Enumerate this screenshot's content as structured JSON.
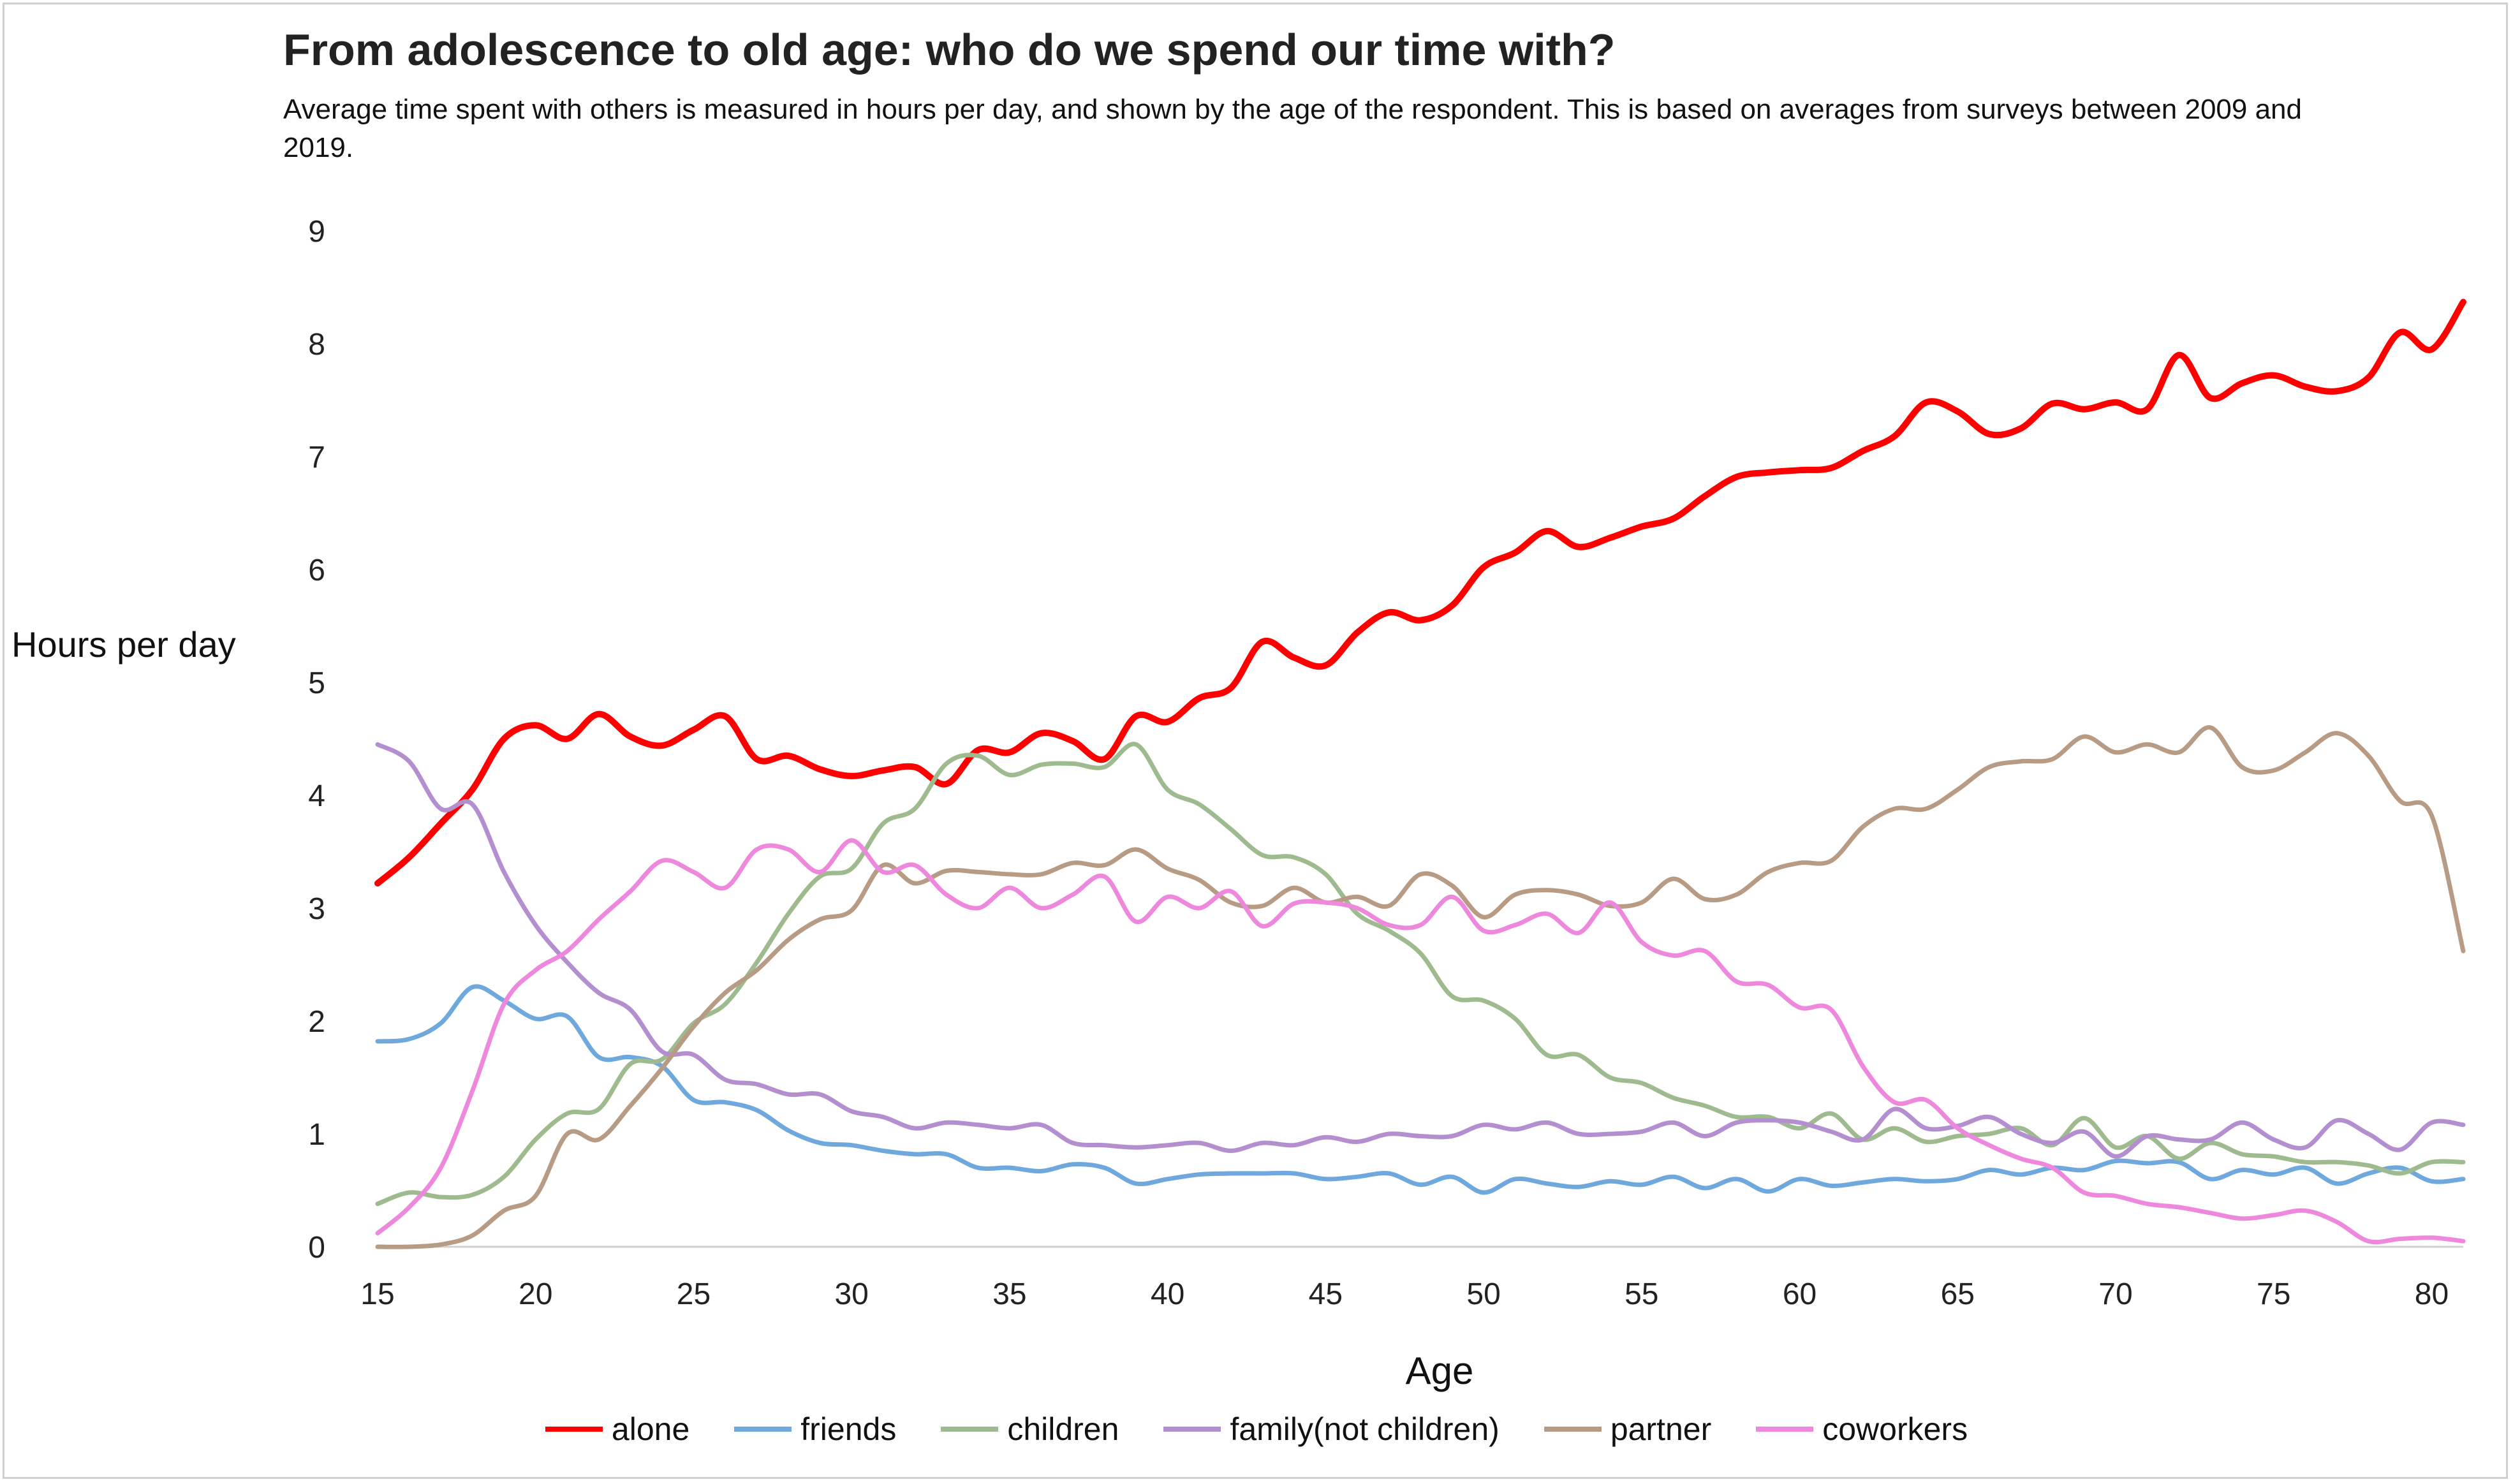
{
  "header": {
    "title": "From adolescence to old age: who do we spend our time with?",
    "subtitle": "Average time spent with others is measured in hours per day, and shown by the age of the respondent. This is based on averages from surveys between 2009 and 2019."
  },
  "chart_data": {
    "type": "line",
    "title": "From adolescence to old age: who do we spend our time with?",
    "subtitle": "Average time spent with others is measured in hours per day, and shown by the age of the respondent. This is based on averages from surveys between 2009 and 2019.",
    "xlabel": "Age",
    "ylabel": "Hours per day",
    "xlim": [
      15,
      81
    ],
    "ylim": [
      0,
      9
    ],
    "x_ticks": [
      15,
      20,
      25,
      30,
      35,
      40,
      45,
      50,
      55,
      60,
      65,
      70,
      75,
      80
    ],
    "y_ticks": [
      0,
      1,
      2,
      3,
      4,
      5,
      6,
      7,
      8,
      9
    ],
    "grid": false,
    "legend_position": "bottom",
    "x": [
      15,
      16,
      17,
      18,
      19,
      20,
      21,
      22,
      23,
      24,
      25,
      26,
      27,
      28,
      29,
      30,
      31,
      32,
      33,
      34,
      35,
      36,
      37,
      38,
      39,
      40,
      41,
      42,
      43,
      44,
      45,
      46,
      47,
      48,
      49,
      50,
      51,
      52,
      53,
      54,
      55,
      56,
      57,
      58,
      59,
      60,
      61,
      62,
      63,
      64,
      65,
      66,
      67,
      68,
      69,
      70,
      71,
      72,
      73,
      74,
      75,
      76,
      77,
      78,
      79,
      80,
      81
    ],
    "series": [
      {
        "name": "alone",
        "color": "#ff0000",
        "values": [
          3.22,
          3.45,
          3.75,
          4.05,
          4.5,
          4.62,
          4.5,
          4.72,
          4.52,
          4.44,
          4.58,
          4.7,
          4.32,
          4.35,
          4.23,
          4.17,
          4.22,
          4.25,
          4.1,
          4.4,
          4.38,
          4.55,
          4.48,
          4.32,
          4.7,
          4.65,
          4.86,
          4.95,
          5.36,
          5.22,
          5.15,
          5.44,
          5.62,
          5.55,
          5.68,
          6.02,
          6.15,
          6.34,
          6.2,
          6.28,
          6.38,
          6.45,
          6.65,
          6.82,
          6.86,
          6.88,
          6.9,
          7.05,
          7.18,
          7.48,
          7.4,
          7.2,
          7.25,
          7.47,
          7.42,
          7.48,
          7.42,
          7.9,
          7.52,
          7.65,
          7.72,
          7.62,
          7.58,
          7.7,
          8.1,
          7.95,
          8.37
        ]
      },
      {
        "name": "friends",
        "color": "#6fa8dc",
        "values": [
          1.82,
          1.84,
          1.98,
          2.3,
          2.18,
          2.02,
          2.04,
          1.68,
          1.68,
          1.6,
          1.3,
          1.28,
          1.21,
          1.03,
          0.92,
          0.9,
          0.85,
          0.82,
          0.82,
          0.7,
          0.7,
          0.67,
          0.73,
          0.7,
          0.56,
          0.6,
          0.64,
          0.65,
          0.65,
          0.65,
          0.6,
          0.62,
          0.65,
          0.55,
          0.62,
          0.48,
          0.6,
          0.56,
          0.53,
          0.58,
          0.55,
          0.62,
          0.52,
          0.6,
          0.49,
          0.6,
          0.54,
          0.57,
          0.6,
          0.58,
          0.6,
          0.68,
          0.64,
          0.7,
          0.68,
          0.76,
          0.74,
          0.75,
          0.6,
          0.68,
          0.64,
          0.7,
          0.56,
          0.65,
          0.7,
          0.58,
          0.6
        ]
      },
      {
        "name": "children",
        "color": "#9dbb8f",
        "values": [
          0.38,
          0.48,
          0.44,
          0.46,
          0.62,
          0.95,
          1.18,
          1.22,
          1.62,
          1.66,
          1.98,
          2.15,
          2.52,
          2.95,
          3.28,
          3.35,
          3.75,
          3.88,
          4.28,
          4.35,
          4.18,
          4.27,
          4.28,
          4.25,
          4.45,
          4.05,
          3.92,
          3.7,
          3.47,
          3.45,
          3.3,
          2.95,
          2.8,
          2.6,
          2.22,
          2.18,
          2.02,
          1.7,
          1.7,
          1.5,
          1.45,
          1.32,
          1.25,
          1.15,
          1.15,
          1.05,
          1.18,
          0.95,
          1.05,
          0.93,
          0.98,
          1.0,
          1.05,
          0.9,
          1.14,
          0.88,
          0.98,
          0.78,
          0.92,
          0.82,
          0.8,
          0.75,
          0.75,
          0.72,
          0.65,
          0.75,
          0.75
        ]
      },
      {
        "name": "family(not children)",
        "color": "#b48fd0",
        "values": [
          4.45,
          4.3,
          3.88,
          3.92,
          3.32,
          2.85,
          2.52,
          2.25,
          2.1,
          1.73,
          1.7,
          1.48,
          1.44,
          1.35,
          1.35,
          1.2,
          1.15,
          1.05,
          1.1,
          1.08,
          1.05,
          1.08,
          0.92,
          0.9,
          0.88,
          0.9,
          0.92,
          0.85,
          0.92,
          0.9,
          0.97,
          0.93,
          1.0,
          0.98,
          0.98,
          1.08,
          1.04,
          1.1,
          1.0,
          1.0,
          1.02,
          1.1,
          0.98,
          1.1,
          1.12,
          1.1,
          1.02,
          0.95,
          1.22,
          1.05,
          1.07,
          1.15,
          1.0,
          0.92,
          1.02,
          0.8,
          0.98,
          0.95,
          0.95,
          1.1,
          0.95,
          0.88,
          1.12,
          1.0,
          0.86,
          1.1,
          1.08
        ]
      },
      {
        "name": "partner",
        "color": "#b89b84",
        "values": [
          0.0,
          0.0,
          0.02,
          0.1,
          0.32,
          0.45,
          1.0,
          0.95,
          1.25,
          1.58,
          1.95,
          2.25,
          2.45,
          2.72,
          2.9,
          2.98,
          3.38,
          3.22,
          3.33,
          3.32,
          3.3,
          3.3,
          3.4,
          3.38,
          3.52,
          3.35,
          3.25,
          3.05,
          3.02,
          3.18,
          3.05,
          3.1,
          3.02,
          3.3,
          3.2,
          2.92,
          3.12,
          3.16,
          3.12,
          3.02,
          3.05,
          3.26,
          3.08,
          3.12,
          3.32,
          3.4,
          3.42,
          3.72,
          3.88,
          3.88,
          4.05,
          4.25,
          4.3,
          4.32,
          4.52,
          4.38,
          4.45,
          4.38,
          4.6,
          4.25,
          4.22,
          4.38,
          4.55,
          4.35,
          3.95,
          3.82,
          2.62
        ]
      },
      {
        "name": "coworkers",
        "color": "#ee88dd",
        "values": [
          0.12,
          0.35,
          0.7,
          1.38,
          2.15,
          2.45,
          2.62,
          2.9,
          3.15,
          3.42,
          3.32,
          3.18,
          3.52,
          3.52,
          3.32,
          3.6,
          3.32,
          3.38,
          3.12,
          3.0,
          3.18,
          3.0,
          3.12,
          3.28,
          2.88,
          3.1,
          3.0,
          3.15,
          2.84,
          3.04,
          3.05,
          3.0,
          2.85,
          2.85,
          3.1,
          2.8,
          2.85,
          2.95,
          2.78,
          3.05,
          2.7,
          2.58,
          2.62,
          2.35,
          2.32,
          2.12,
          2.1,
          1.6,
          1.28,
          1.3,
          1.05,
          0.9,
          0.78,
          0.7,
          0.48,
          0.45,
          0.38,
          0.35,
          0.3,
          0.25,
          0.28,
          0.32,
          0.22,
          0.05,
          0.07,
          0.08,
          0.05
        ]
      }
    ]
  }
}
